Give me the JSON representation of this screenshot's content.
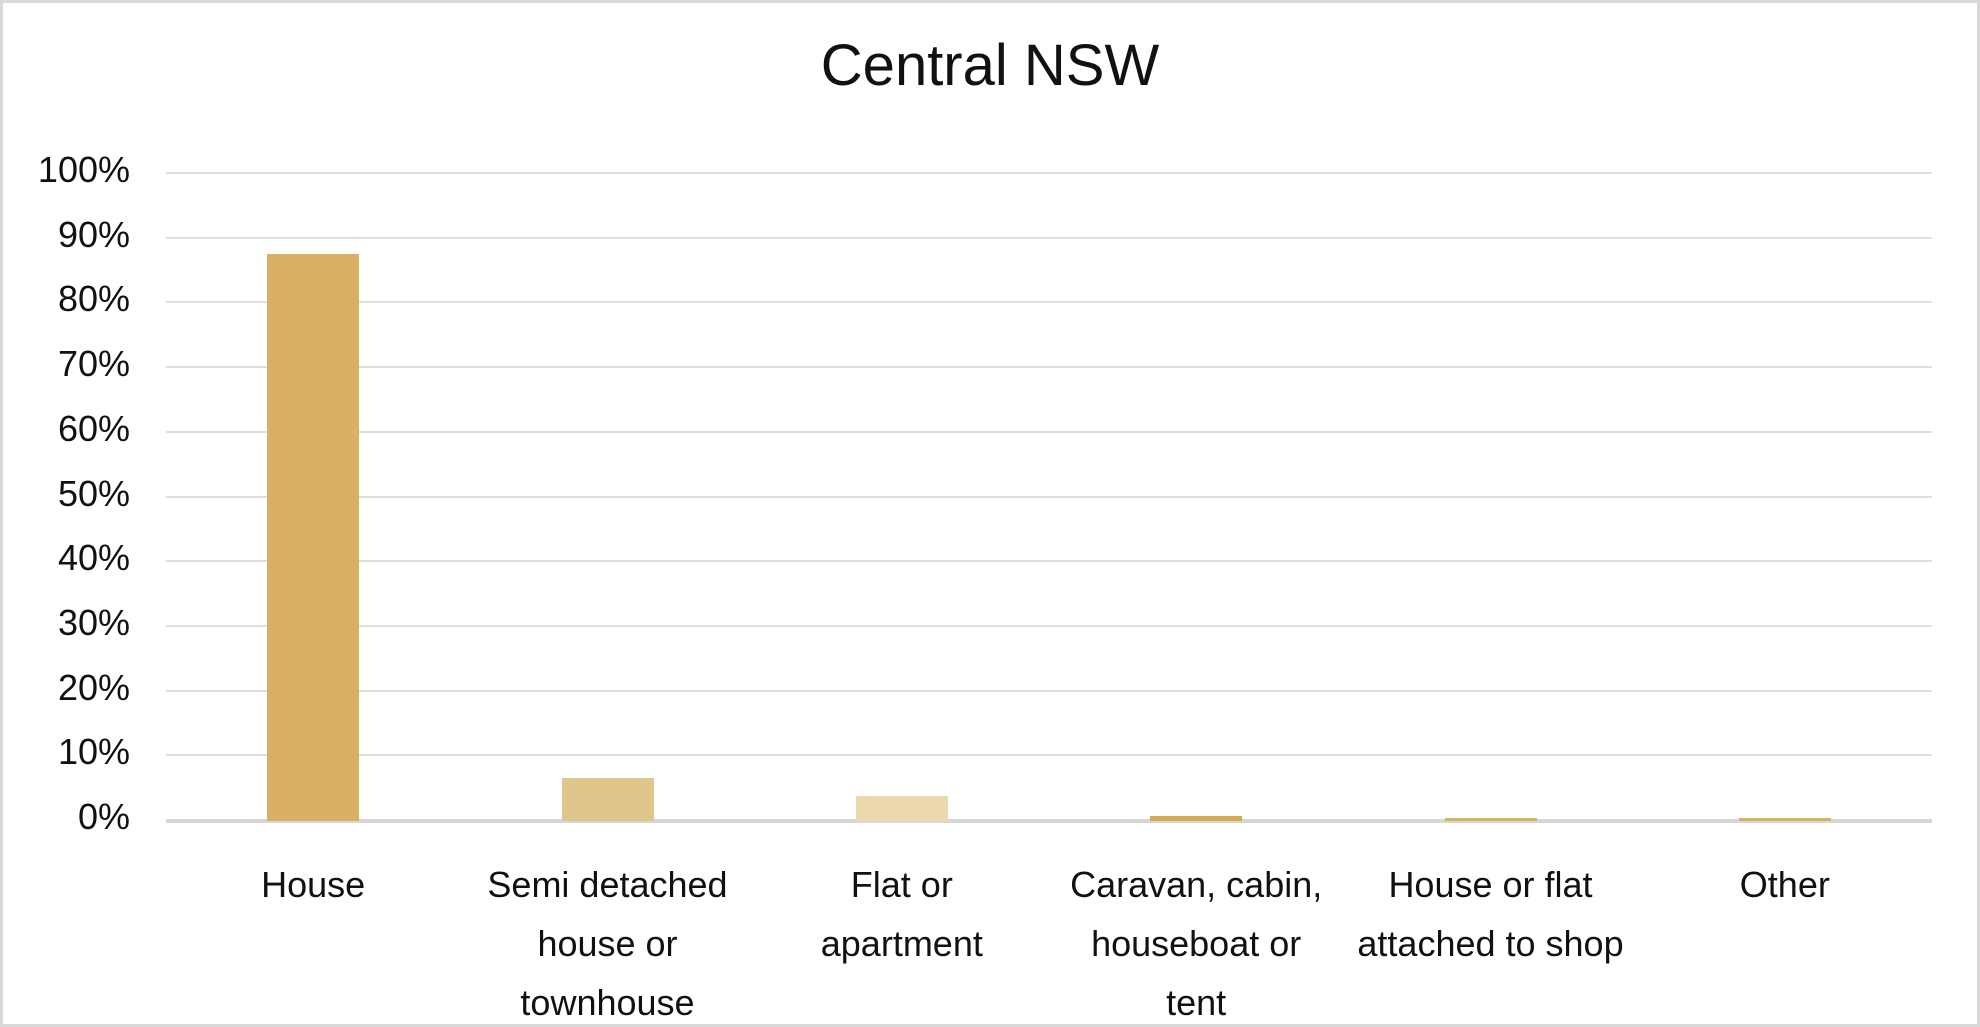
{
  "chart_data": {
    "type": "bar",
    "title": "Central NSW",
    "categories": [
      "House",
      "Semi detached house or townhouse",
      "Flat or apartment",
      "Caravan, cabin, houseboat or tent",
      "House or flat attached to shop",
      "Other"
    ],
    "category_label_lines": [
      [
        "House"
      ],
      [
        "Semi detached",
        "house or",
        "townhouse"
      ],
      [
        "Flat or",
        "apartment"
      ],
      [
        "Caravan, cabin,",
        "houseboat or",
        "tent"
      ],
      [
        "House or flat",
        "attached to shop"
      ],
      [
        "Other"
      ]
    ],
    "values": [
      87.7,
      6.6,
      3.8,
      0.7,
      0.5,
      0.5
    ],
    "bar_colors": [
      "#d9b162",
      "#dfc68c",
      "#ebd9ad",
      "#d5ab51",
      "#d8b25c",
      "#d8b25c"
    ],
    "xlabel": "",
    "ylabel": "",
    "ylim": [
      0,
      100
    ],
    "ytick_step": 10,
    "ytick_labels": [
      "0%",
      "10%",
      "20%",
      "30%",
      "40%",
      "50%",
      "60%",
      "70%",
      "80%",
      "90%",
      "100%"
    ],
    "grid": true,
    "legend": false,
    "gridline_color": "#dedede",
    "axis_line_color": "#d6d6d6",
    "frame_border_color": "#d9d9d9",
    "text_color": "#111111"
  }
}
